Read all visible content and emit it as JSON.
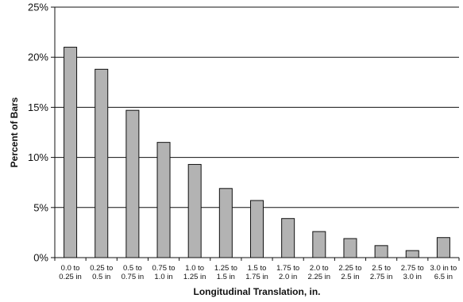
{
  "chart_data": {
    "type": "bar",
    "title": "",
    "xlabel": "Longitudinal Translation, in.",
    "ylabel": "Percent of Bars",
    "ylim": [
      0,
      25
    ],
    "yticks": [
      "0%",
      "5%",
      "10%",
      "15%",
      "20%",
      "25%"
    ],
    "grid": "horizontal",
    "categories": [
      [
        "0.0 to",
        "0.25 in"
      ],
      [
        "0.25 to",
        "0.5 in"
      ],
      [
        "0.5 to",
        "0.75 in"
      ],
      [
        "0.75 to",
        "1.0 in"
      ],
      [
        "1.0 to",
        "1.25 in"
      ],
      [
        "1.25 to",
        "1.5 in"
      ],
      [
        "1.5 to",
        "1.75 in"
      ],
      [
        "1.75 to",
        "2.0 in"
      ],
      [
        "2.0 to",
        "2.25 in"
      ],
      [
        "2.25 to",
        "2.5 in"
      ],
      [
        "2.5 to",
        "2.75 in"
      ],
      [
        "2.75 to",
        "3.0 in"
      ],
      [
        "3.0 in to",
        "6.5 in"
      ]
    ],
    "values": [
      21.0,
      18.8,
      14.7,
      11.5,
      9.3,
      6.9,
      5.7,
      3.9,
      2.6,
      1.9,
      1.2,
      0.7,
      2.0
    ],
    "bar_color": "#b3b3b3",
    "bar_stroke": "#111111"
  }
}
